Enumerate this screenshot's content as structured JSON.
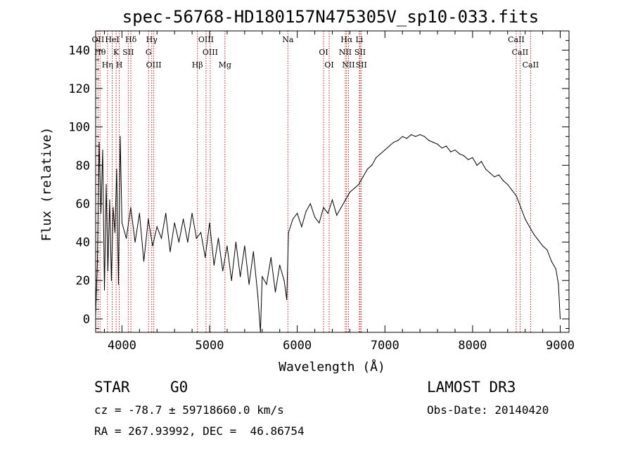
{
  "chart_data": {
    "type": "line",
    "title": "spec-56768-HD180157N475305V_sp10-033.fits",
    "xlabel": "Wavelength (Å)",
    "ylabel": "Flux (relative)",
    "xlim": [
      3700,
      9100
    ],
    "ylim": [
      -7,
      150
    ],
    "xticks": [
      4000,
      5000,
      6000,
      7000,
      8000,
      9000
    ],
    "yticks": [
      0,
      20,
      40,
      60,
      80,
      100,
      120,
      140
    ],
    "series": [
      {
        "name": "flux",
        "x": [
          3700,
          3720,
          3740,
          3760,
          3780,
          3800,
          3820,
          3840,
          3860,
          3880,
          3900,
          3920,
          3940,
          3960,
          3980,
          4000,
          4050,
          4100,
          4150,
          4200,
          4250,
          4300,
          4350,
          4400,
          4450,
          4500,
          4550,
          4600,
          4650,
          4700,
          4750,
          4800,
          4850,
          4900,
          4950,
          5000,
          5050,
          5100,
          5150,
          5200,
          5250,
          5300,
          5350,
          5400,
          5450,
          5500,
          5550,
          5580,
          5600,
          5650,
          5700,
          5750,
          5800,
          5850,
          5880,
          5900,
          5950,
          6000,
          6050,
          6100,
          6150,
          6200,
          6250,
          6300,
          6350,
          6400,
          6450,
          6500,
          6550,
          6600,
          6650,
          6700,
          6750,
          6800,
          6850,
          6900,
          6950,
          7000,
          7050,
          7100,
          7150,
          7200,
          7250,
          7300,
          7350,
          7400,
          7450,
          7500,
          7550,
          7600,
          7650,
          7700,
          7750,
          7800,
          7850,
          7900,
          7950,
          8000,
          8050,
          8100,
          8150,
          8200,
          8250,
          8300,
          8350,
          8400,
          8450,
          8500,
          8550,
          8600,
          8650,
          8700,
          8750,
          8800,
          8850,
          8900,
          8950,
          8980,
          9000
        ],
        "y": [
          2,
          30,
          92,
          55,
          88,
          15,
          70,
          25,
          62,
          20,
          58,
          45,
          78,
          18,
          95,
          50,
          42,
          58,
          40,
          55,
          30,
          52,
          38,
          48,
          42,
          55,
          35,
          50,
          40,
          52,
          40,
          55,
          42,
          45,
          32,
          50,
          28,
          42,
          25,
          38,
          20,
          40,
          22,
          38,
          18,
          35,
          12,
          -7,
          22,
          18,
          32,
          14,
          28,
          20,
          10,
          45,
          52,
          55,
          48,
          56,
          60,
          53,
          50,
          58,
          55,
          62,
          54,
          58,
          62,
          66,
          68,
          70,
          74,
          78,
          80,
          84,
          86,
          88,
          90,
          92,
          93,
          95,
          94,
          96,
          95,
          96,
          95,
          93,
          92,
          91,
          89,
          90,
          87,
          88,
          86,
          85,
          83,
          84,
          80,
          82,
          78,
          76,
          74,
          75,
          72,
          70,
          67,
          64,
          58,
          52,
          48,
          44,
          41,
          38,
          36,
          30,
          26,
          18,
          0
        ]
      }
    ],
    "lines": [
      {
        "name": "OII",
        "x": 3727
      },
      {
        "name": "Hθ",
        "x": 3750
      },
      {
        "name": "Hη",
        "x": 3835
      },
      {
        "name": "HeI",
        "x": 3889
      },
      {
        "name": "K",
        "x": 3934
      },
      {
        "name": "H",
        "x": 3969
      },
      {
        "name": "Hδ",
        "x": 4102
      },
      {
        "name": "SII",
        "x": 4072
      },
      {
        "name": "OIII",
        "x": 4363
      },
      {
        "name": "Hγ",
        "x": 4340
      },
      {
        "name": "G",
        "x": 4304
      },
      {
        "name": "Hβ",
        "x": 4861
      },
      {
        "name": "OIII",
        "x": 4959
      },
      {
        "name": "OIII",
        "x": 5007
      },
      {
        "name": "Mg",
        "x": 5175
      },
      {
        "name": "Na",
        "x": 5893
      },
      {
        "name": "OI",
        "x": 6300
      },
      {
        "name": "OI",
        "x": 6364
      },
      {
        "name": "Hα",
        "x": 6563
      },
      {
        "name": "NII",
        "x": 6548
      },
      {
        "name": "NII",
        "x": 6584
      },
      {
        "name": "Li",
        "x": 6708
      },
      {
        "name": "SII",
        "x": 6717
      },
      {
        "name": "SII",
        "x": 6731
      },
      {
        "name": "CaII",
        "x": 8498
      },
      {
        "name": "CaII",
        "x": 8542
      },
      {
        "name": "CaII",
        "x": 8662
      }
    ]
  },
  "info": {
    "object_class": "STAR",
    "subclass": "G0",
    "survey": "LAMOST DR3",
    "cz": "cz = -78.7 ± 59718660.0 km/s",
    "obs_date": "Obs-Date: 20140420",
    "radec": "RA = 267.93992, DEC =  46.86754"
  },
  "colors": {
    "spectrum": "#000000",
    "line_marker": "#b22222",
    "axis": "#000000"
  }
}
